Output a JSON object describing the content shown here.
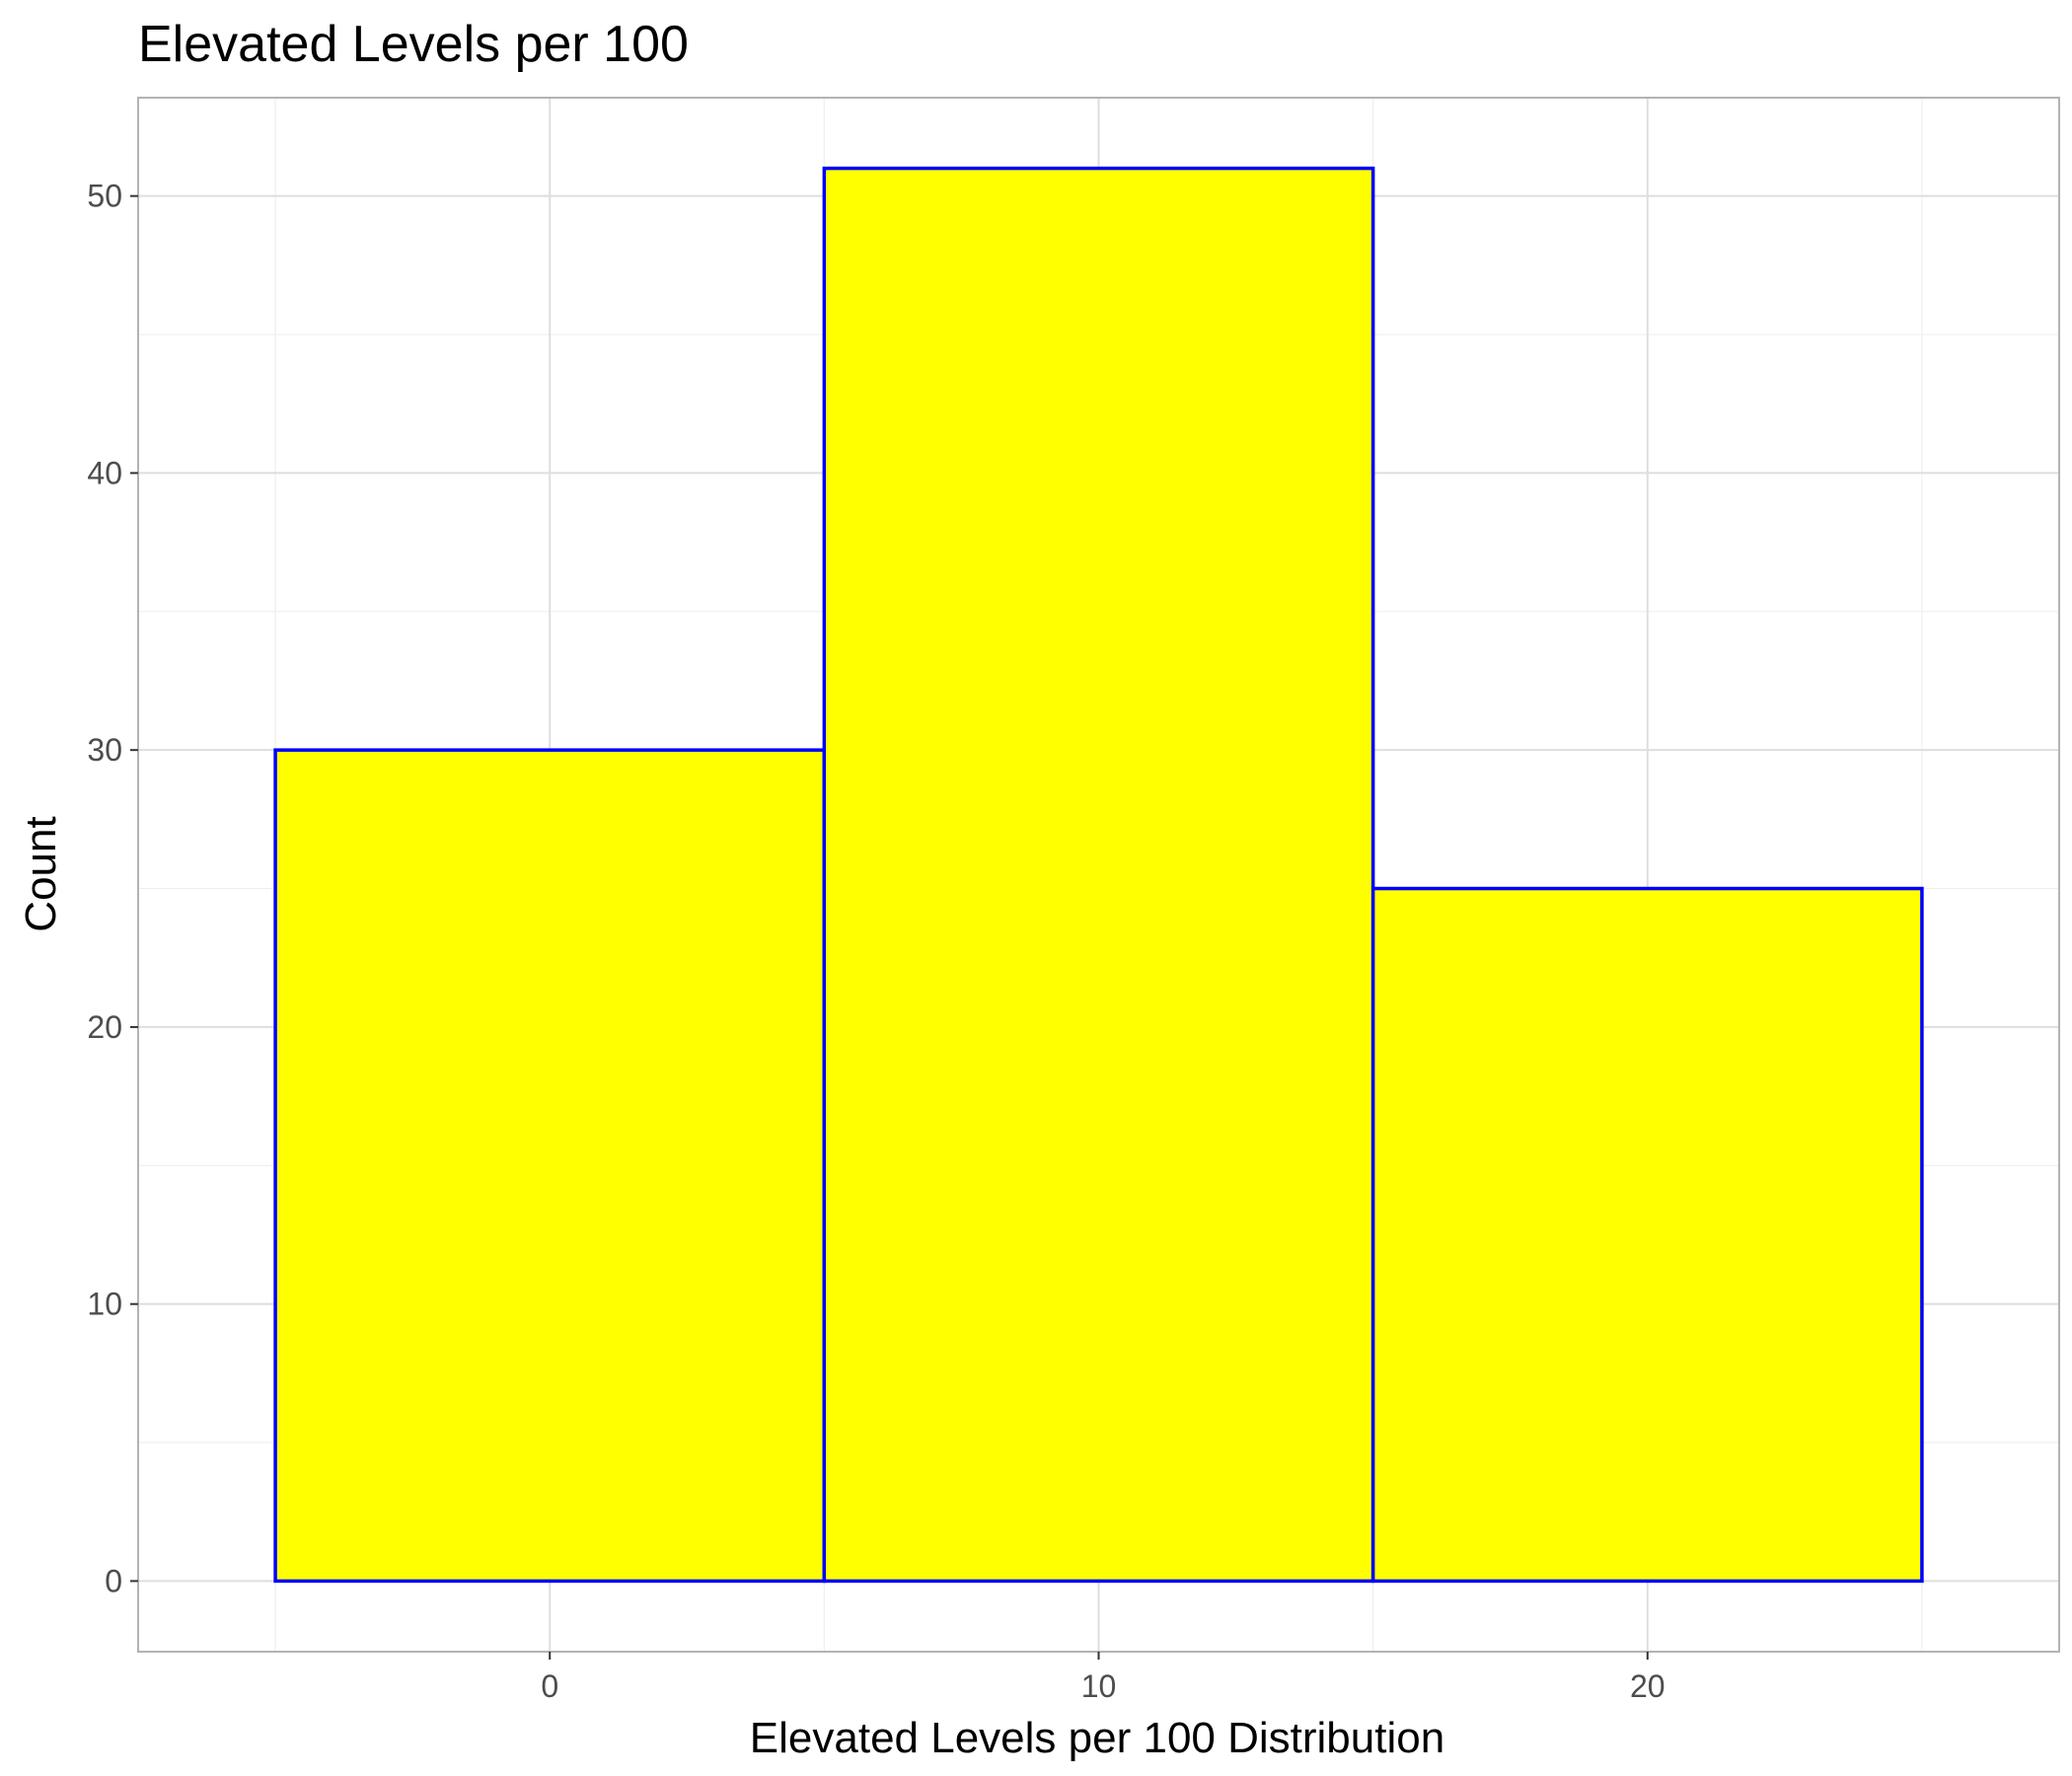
{
  "chart_data": {
    "type": "bar",
    "title": "Elevated Levels per 100",
    "xlabel": "Elevated Levels per 100 Distribution",
    "ylabel": "Count",
    "bins": [
      {
        "x0": -5,
        "x1": 5,
        "count": 30
      },
      {
        "x0": 5,
        "x1": 15,
        "count": 51
      },
      {
        "x0": 15,
        "x1": 25,
        "count": 25
      }
    ],
    "xlim": [
      -7.5,
      27.5
    ],
    "ylim": [
      -2.55,
      53.55
    ],
    "x_ticks": [
      0,
      10,
      20
    ],
    "y_ticks": [
      0,
      10,
      20,
      30,
      40,
      50
    ],
    "grid": true,
    "bar_fill": "#ffff00",
    "bar_outline": "#0000ff",
    "panel_border": "#b3b3b3",
    "grid_major": "#dedede",
    "grid_minor": "#efefef"
  }
}
